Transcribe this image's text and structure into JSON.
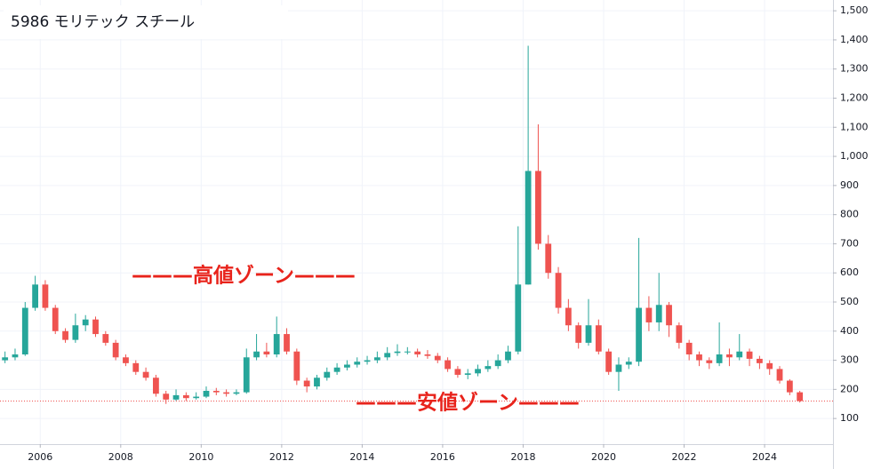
{
  "chart_data": {
    "type": "candlestick",
    "title": "5986  モリテック スチール",
    "annotations": [
      "———高値ゾーン———",
      "———安値ゾーン———"
    ],
    "x": [
      2005.125,
      2005.375,
      2005.625,
      2005.875,
      2006.125,
      2006.375,
      2006.625,
      2006.875,
      2007.125,
      2007.375,
      2007.625,
      2007.875,
      2008.125,
      2008.375,
      2008.625,
      2008.875,
      2009.125,
      2009.375,
      2009.625,
      2009.875,
      2010.125,
      2010.375,
      2010.625,
      2010.875,
      2011.125,
      2011.375,
      2011.625,
      2011.875,
      2012.125,
      2012.375,
      2012.625,
      2012.875,
      2013.125,
      2013.375,
      2013.625,
      2013.875,
      2014.125,
      2014.375,
      2014.625,
      2014.875,
      2015.125,
      2015.375,
      2015.625,
      2015.875,
      2016.125,
      2016.375,
      2016.625,
      2016.875,
      2017.125,
      2017.375,
      2017.625,
      2017.875,
      2018.125,
      2018.375,
      2018.625,
      2018.875,
      2019.125,
      2019.375,
      2019.625,
      2019.875,
      2020.125,
      2020.375,
      2020.625,
      2020.875,
      2021.125,
      2021.375,
      2021.625,
      2021.875,
      2022.125,
      2022.375,
      2022.625,
      2022.875,
      2023.125,
      2023.375,
      2023.625,
      2023.875,
      2024.125,
      2024.375,
      2024.625,
      2024.875
    ],
    "open": [
      300,
      310,
      320,
      480,
      560,
      480,
      400,
      370,
      420,
      440,
      390,
      360,
      310,
      290,
      260,
      240,
      185,
      165,
      180,
      170,
      175,
      195,
      190,
      185,
      190,
      310,
      330,
      320,
      390,
      330,
      230,
      210,
      240,
      260,
      275,
      285,
      295,
      300,
      310,
      325,
      330,
      330,
      320,
      315,
      300,
      270,
      250,
      255,
      270,
      280,
      300,
      330,
      560,
      950,
      700,
      600,
      480,
      420,
      360,
      420,
      330,
      260,
      285,
      295,
      480,
      430,
      490,
      420,
      360,
      320,
      300,
      290,
      320,
      310,
      330,
      305,
      290,
      270,
      230,
      190
    ],
    "high": [
      330,
      340,
      500,
      590,
      575,
      490,
      410,
      460,
      455,
      450,
      400,
      370,
      320,
      300,
      275,
      250,
      195,
      200,
      190,
      190,
      210,
      205,
      200,
      200,
      340,
      390,
      360,
      450,
      410,
      340,
      240,
      250,
      275,
      290,
      300,
      310,
      315,
      330,
      345,
      355,
      345,
      340,
      335,
      325,
      310,
      280,
      270,
      285,
      300,
      320,
      350,
      760,
      1380,
      1110,
      730,
      620,
      510,
      430,
      510,
      440,
      340,
      310,
      310,
      720,
      520,
      600,
      500,
      430,
      370,
      330,
      310,
      430,
      340,
      390,
      340,
      315,
      300,
      280,
      235,
      195
    ],
    "low": [
      290,
      300,
      315,
      470,
      470,
      390,
      360,
      360,
      400,
      380,
      350,
      300,
      280,
      250,
      230,
      175,
      150,
      160,
      160,
      165,
      170,
      180,
      175,
      180,
      185,
      300,
      310,
      310,
      320,
      215,
      190,
      200,
      230,
      250,
      265,
      275,
      285,
      290,
      300,
      315,
      320,
      310,
      305,
      290,
      260,
      240,
      235,
      245,
      260,
      270,
      290,
      320,
      560,
      680,
      580,
      460,
      400,
      340,
      350,
      320,
      250,
      195,
      270,
      280,
      400,
      400,
      380,
      340,
      300,
      280,
      270,
      280,
      280,
      300,
      280,
      270,
      250,
      220,
      180,
      155
    ],
    "close": [
      310,
      320,
      480,
      560,
      480,
      400,
      370,
      420,
      440,
      390,
      360,
      310,
      290,
      260,
      240,
      185,
      165,
      180,
      170,
      175,
      195,
      190,
      185,
      190,
      310,
      330,
      320,
      390,
      330,
      230,
      210,
      240,
      260,
      275,
      285,
      295,
      300,
      310,
      325,
      330,
      330,
      320,
      315,
      300,
      270,
      250,
      255,
      270,
      280,
      300,
      330,
      560,
      950,
      700,
      600,
      480,
      420,
      360,
      420,
      330,
      260,
      285,
      295,
      480,
      430,
      490,
      420,
      360,
      320,
      300,
      290,
      320,
      310,
      330,
      305,
      290,
      270,
      230,
      190,
      160
    ],
    "up_color": "#26a69a",
    "down_color": "#ef5350",
    "xlim": [
      2005,
      2025.7
    ],
    "xticks": [
      2006,
      2008,
      2010,
      2012,
      2014,
      2016,
      2018,
      2020,
      2022,
      2024
    ],
    "ylim": [
      12,
      1537
    ],
    "yticks": [
      100,
      200,
      300,
      400,
      500,
      600,
      700,
      800,
      900,
      {
        "value": 1000,
        "label": "1,000"
      },
      {
        "value": 1100,
        "label": "1,100"
      },
      {
        "value": 1200,
        "label": "1,200"
      },
      {
        "value": 1300,
        "label": "1,300"
      },
      {
        "value": 1400,
        "label": "1,400"
      },
      {
        "value": 1500,
        "label": "1,500"
      }
    ],
    "grid": true
  }
}
